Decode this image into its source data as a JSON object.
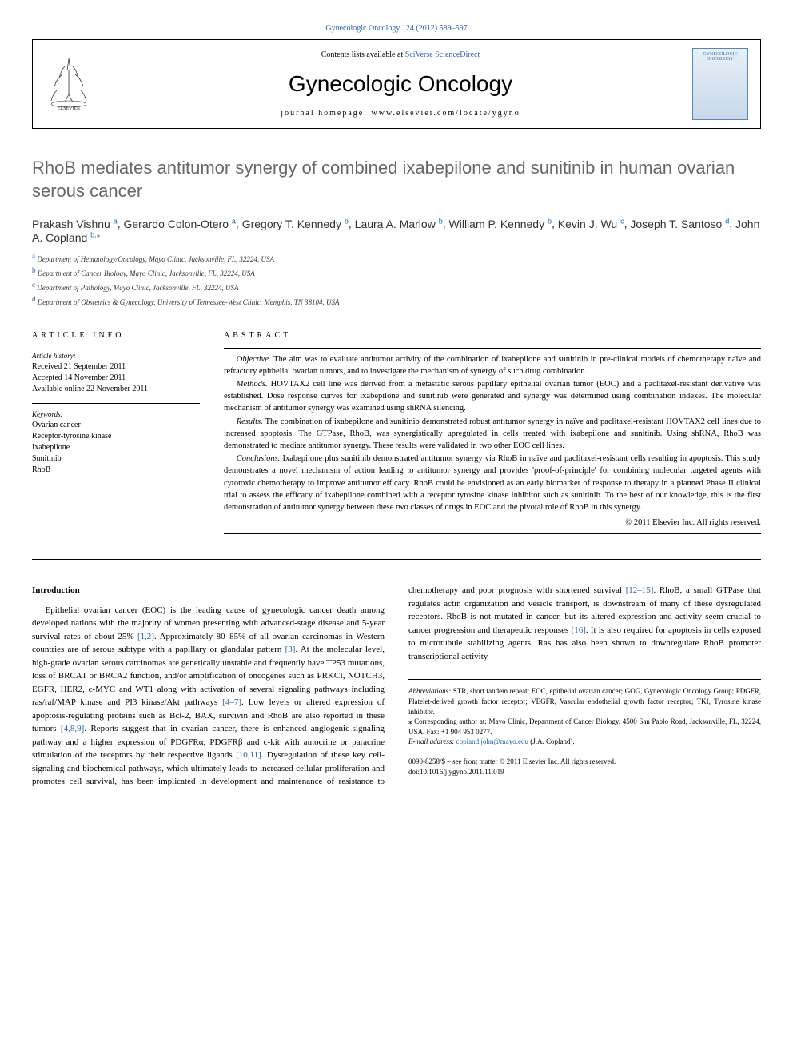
{
  "top_link_text": "Gynecologic Oncology 124 (2012) 589–597",
  "header": {
    "contents_prefix": "Contents lists available at ",
    "contents_link": "SciVerse ScienceDirect",
    "journal_title": "Gynecologic Oncology",
    "homepage": "journal homepage: www.elsevier.com/locate/ygyno",
    "cover_label": "GYNECOLOGIC ONCOLOGY"
  },
  "title": "RhoB mediates antitumor synergy of combined ixabepilone and sunitinib in human ovarian serous cancer",
  "authors": [
    {
      "name": "Prakash Vishnu",
      "sup": "a"
    },
    {
      "name": "Gerardo Colon-Otero",
      "sup": "a"
    },
    {
      "name": "Gregory T. Kennedy",
      "sup": "b"
    },
    {
      "name": "Laura A. Marlow",
      "sup": "b"
    },
    {
      "name": "William P. Kennedy",
      "sup": "b"
    },
    {
      "name": "Kevin J. Wu",
      "sup": "c"
    },
    {
      "name": "Joseph T. Santoso",
      "sup": "d"
    },
    {
      "name": "John A. Copland",
      "sup": "b,",
      "star": "⁎"
    }
  ],
  "affiliations": [
    {
      "sup": "a",
      "text": "Department of Hematology/Oncology, Mayo Clinic, Jacksonville, FL, 32224, USA"
    },
    {
      "sup": "b",
      "text": "Department of Cancer Biology, Mayo Clinic, Jacksonville, FL, 32224, USA"
    },
    {
      "sup": "c",
      "text": "Department of Pathology, Mayo Clinic, Jacksonville, FL, 32224, USA"
    },
    {
      "sup": "d",
      "text": "Department of Obstetrics & Gynecology, University of Tennessee-West Clinic, Memphis, TN 38104, USA"
    }
  ],
  "article_info": {
    "heading": "ARTICLE INFO",
    "history_label": "Article history:",
    "history": [
      "Received 21 September 2011",
      "Accepted 14 November 2011",
      "Available online 22 November 2011"
    ],
    "keywords_label": "Keywords:",
    "keywords": [
      "Ovarian cancer",
      "Receptor-tyrosine kinase",
      "Ixabepilone",
      "Sunitinib",
      "RhoB"
    ]
  },
  "abstract": {
    "heading": "ABSTRACT",
    "sections": [
      {
        "label": "Objective.",
        "text": "The aim was to evaluate antitumor activity of the combination of ixabepilone and sunitinib in pre-clinical models of chemotherapy naïve and refractory epithelial ovarian tumors, and to investigate the mechanism of synergy of such drug combination."
      },
      {
        "label": "Methods.",
        "text": "HOVTAX2 cell line was derived from a metastatic serous papillary epithelial ovarian tumor (EOC) and a paclitaxel-resistant derivative was established. Dose response curves for ixabepilone and sunitinib were generated and synergy was determined using combination indexes. The molecular mechanism of antitumor synergy was examined using shRNA silencing."
      },
      {
        "label": "Results.",
        "text": "The combination of ixabepilone and sunitinib demonstrated robust antitumor synergy in naïve and paclitaxel-resistant HOVTAX2 cell lines due to increased apoptosis. The GTPase, RhoB, was synergistically upregulated in cells treated with ixabepilone and sunitinib. Using shRNA, RhoB was demonstrated to mediate antitumor synergy. These results were validated in two other EOC cell lines."
      },
      {
        "label": "Conclusions.",
        "text": "Ixabepilone plus sunitinib demonstrated antitumor synergy via RhoB in naïve and paclitaxel-resistant cells resulting in apoptosis. This study demonstrates a novel mechanism of action leading to antitumor synergy and provides 'proof-of-principle' for combining molecular targeted agents with cytotoxic chemotherapy to improve antitumor efficacy. RhoB could be envisioned as an early biomarker of response to therapy in a planned Phase II clinical trial to assess the efficacy of ixabepilone combined with a receptor tyrosine kinase inhibitor such as sunitinib. To the best of our knowledge, this is the first demonstration of antitumor synergy between these two classes of drugs in EOC and the pivotal role of RhoB in this synergy."
      }
    ],
    "copyright": "© 2011 Elsevier Inc. All rights reserved."
  },
  "intro": {
    "heading": "Introduction",
    "para1_pre": "Epithelial ovarian cancer (EOC) is the leading cause of gynecologic cancer death among developed nations with the majority of women presenting with advanced-stage disease and 5-year survival rates of about 25% ",
    "ref1": "[1,2]",
    "para1_mid": ". Approximately 80–85% of all ovarian carcinomas in Western countries are of serous subtype with a papillary or glandular pattern ",
    "ref2": "[3]",
    "para1_end": ". At the molecular level, high-grade ovarian serous carcinomas are genetically unstable and frequently have TP53 mutations, loss of BRCA1 or BRCA2 function, and/or amplification of oncogenes such as PRKCI, NOTCH3, EGFR, HER2, c-MYC and WT1 along with",
    "para2_pre": "activation of several signaling pathways including ras/raf/MAP kinase and PI3 kinase/Akt pathways ",
    "ref3": "[4–7]",
    "para2_a": ". Low levels or altered expression of apoptosis-regulating proteins such as Bcl-2, BAX, survivin and RhoB are also reported in these tumors ",
    "ref4": "[4,8,9]",
    "para2_b": ". Reports suggest that in ovarian cancer, there is enhanced angiogenic-signaling pathway and a higher expression of PDGFRα, PDGFRβ and c-kit with autocrine or paracrine stimulation of the receptors by their respective ligands ",
    "ref5": "[10,11]",
    "para2_c": ". Dysregulation of these key cell-signaling and biochemical pathways, which ultimately leads to increased cellular proliferation and promotes cell survival, has been implicated in development and maintenance of resistance to chemotherapy and poor prognosis with shortened survival ",
    "ref6": "[12–15]",
    "para2_d": ". RhoB, a small GTPase that regulates actin organization and vesicle transport, is downstream of many of these dysregulated receptors. RhoB is not mutated in cancer, but its altered expression and activity seem crucial to cancer progression and therapeutic responses ",
    "ref7": "[16]",
    "para2_e": ". It is also required for apoptosis in cells exposed to microtubule stabilizing agents. Ras has also been shown to downregulate RhoB promoter transcriptional activity"
  },
  "footer": {
    "abbrev_label": "Abbreviations:",
    "abbrev_text": " STR, short tandem repeat; EOC, epithelial ovarian cancer; GOG, Gynecologic Oncology Group; PDGFR, Platelet-derived growth factor receptor; VEGFR, Vascular endothelial growth factor receptor; TKI, Tyrosine kinase inhibitor.",
    "corr_label": "⁎ Corresponding author at:",
    "corr_text": " Mayo Clinic, Department of Cancer Biology, 4500 San Pablo Road, Jacksonville, FL, 32224, USA. Fax: +1 904 953 0277.",
    "email_label": "E-mail address: ",
    "email": "copland.john@mayo.edu",
    "email_suffix": " (J.A. Copland).",
    "bottom1": "0090-8258/$ – see front matter © 2011 Elsevier Inc. All rights reserved.",
    "bottom2": "doi:10.1016/j.ygyno.2011.11.019"
  }
}
